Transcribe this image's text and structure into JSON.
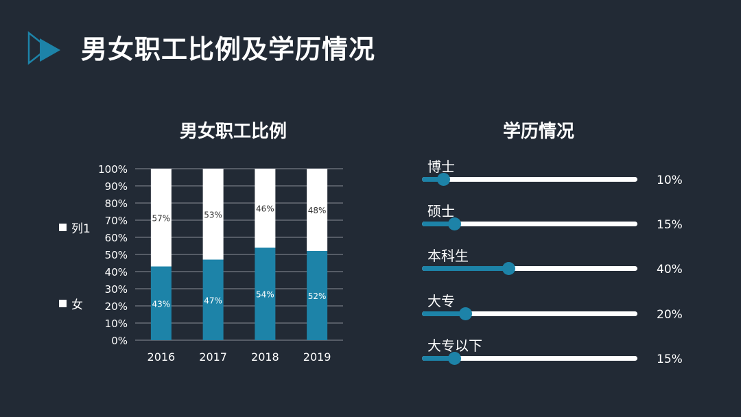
{
  "page": {
    "title": "男女职工比例及学历情况"
  },
  "colors": {
    "background": "#222a35",
    "accent": "#1d83a8",
    "white": "#ffffff",
    "grid": "#8a8f96"
  },
  "gender_chart": {
    "title": "男女职工比例"
  },
  "education": {
    "title": "学历情况",
    "items": [
      {
        "label": "博士",
        "value": 10,
        "value_label": "10%"
      },
      {
        "label": "硕士",
        "value": 15,
        "value_label": "15%"
      },
      {
        "label": "本科生",
        "value": 40,
        "value_label": "40%"
      },
      {
        "label": "大专",
        "value": 20,
        "value_label": "20%"
      },
      {
        "label": "大专以下",
        "value": 15,
        "value_label": "15%"
      }
    ]
  },
  "chart_data": {
    "type": "bar",
    "stacked": true,
    "percent_stacked": true,
    "title": "男女职工比例",
    "categories": [
      "2016",
      "2017",
      "2018",
      "2019"
    ],
    "series": [
      {
        "name": "女",
        "values": [
          43,
          47,
          54,
          52
        ],
        "labels": [
          "43%",
          "47%",
          "54%",
          "52%"
        ],
        "color": "#1d83a8"
      },
      {
        "name": "列1",
        "values": [
          57,
          53,
          46,
          48
        ],
        "labels": [
          "57%",
          "53%",
          "46%",
          "48%"
        ],
        "color": "#ffffff"
      }
    ],
    "legend": [
      "列1",
      "女"
    ],
    "ylim": [
      0,
      100
    ],
    "yticks": [
      "0%",
      "10%",
      "20%",
      "30%",
      "40%",
      "50%",
      "60%",
      "70%",
      "80%",
      "90%",
      "100%"
    ],
    "grid": true,
    "legend_position": "left"
  }
}
